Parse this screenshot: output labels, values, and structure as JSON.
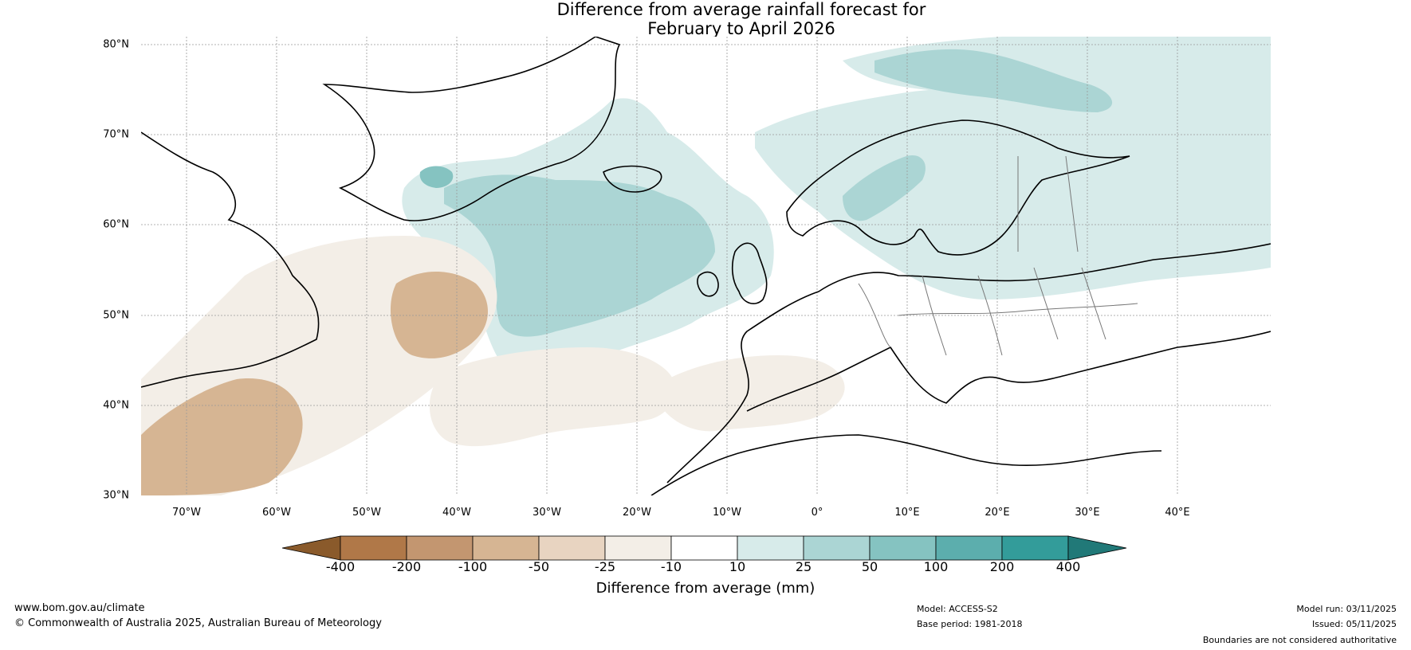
{
  "title": {
    "line1": "Difference from average rainfall forecast for",
    "line2": "February to April 2026"
  },
  "map": {
    "region": "North Atlantic and Europe",
    "lat_labels": [
      "80°N",
      "70°N",
      "60°N",
      "50°N",
      "40°N",
      "30°N"
    ],
    "lon_labels": [
      "70°W",
      "60°W",
      "50°W",
      "40°W",
      "30°W",
      "20°W",
      "10°W",
      "0°",
      "10°E",
      "20°E",
      "30°E",
      "40°E"
    ],
    "icons": [
      "land-outline-icon",
      "rainfall-contour-icon"
    ]
  },
  "colorbar": {
    "ticks": [
      "-400",
      "-200",
      "-100",
      "-50",
      "-25",
      "-10",
      "10",
      "25",
      "50",
      "100",
      "200",
      "400"
    ],
    "colors": [
      "#8a5a2b",
      "#b07848",
      "#c39670",
      "#d6b593",
      "#e8d4c1",
      "#f3eee7",
      "#ffffff",
      "#d7ebea",
      "#abd5d4",
      "#85c3c1",
      "#5caead",
      "#339c9a",
      "#217978"
    ],
    "label": "Difference from average (mm)"
  },
  "footer": {
    "website": "www.bom.gov.au/climate",
    "copyright": "© Commonwealth of Australia 2025, Australian Bureau of Meteorology",
    "model": "Model: ACCESS-S2",
    "base_period": "Base period: 1981-2018",
    "model_run": "Model run: 03/11/2025",
    "issued": "Issued: 05/11/2025",
    "disclaimer": "Boundaries are not considered authoritative"
  }
}
